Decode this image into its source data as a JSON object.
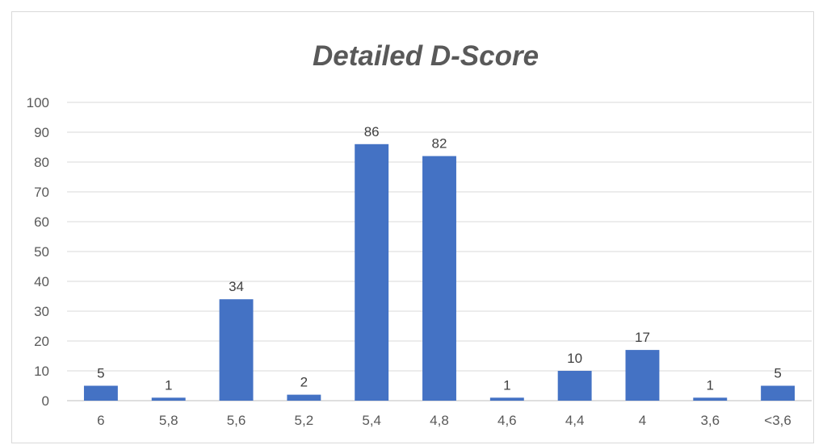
{
  "chart_data": {
    "type": "bar",
    "title": "Detailed D-Score",
    "xlabel": "",
    "ylabel": "",
    "categories": [
      "6",
      "5,8",
      "5,6",
      "5,2",
      "5,4",
      "4,8",
      "4,6",
      "4,4",
      "4",
      "3,6",
      "<3,6"
    ],
    "values": [
      5,
      1,
      34,
      2,
      86,
      82,
      1,
      10,
      17,
      1,
      5
    ],
    "ylim": [
      0,
      100
    ],
    "yticks": [
      0,
      10,
      20,
      30,
      40,
      50,
      60,
      70,
      80,
      90,
      100
    ],
    "grid": true,
    "legend": "none",
    "data_labels": true,
    "bar_color": "#4472c4"
  }
}
